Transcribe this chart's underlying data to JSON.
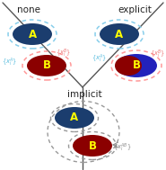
{
  "title_none": "none",
  "title_explicit": "explicit",
  "title_implicit": "implicit",
  "label_A": "A",
  "label_B": "B",
  "color_A_fill": "#1b3d6e",
  "color_B_fill_dark": "#8b0000",
  "color_B_fill_blue": "#2222bb",
  "color_A_ring": "#87ceeb",
  "color_B_ring_pink": "#ff9999",
  "color_implicit_ring": "#999999",
  "color_label": "#ffff00",
  "color_text": "#222222",
  "color_axis": "#555555",
  "bg_color": "#ffffff",
  "ann_cyan": "#55bbdd",
  "ann_pink": "#ee7777",
  "ann_gray": "#888888"
}
